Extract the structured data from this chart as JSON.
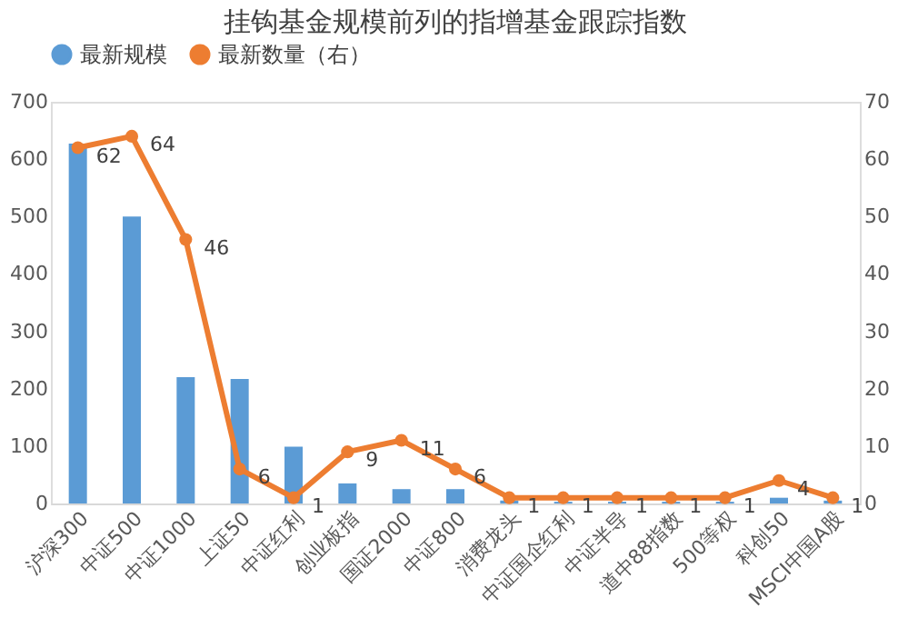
{
  "chart_data": {
    "type": "bar",
    "title": "挂钩基金规模前列的指增基金跟踪指数",
    "categories": [
      "沪深300",
      "中证500",
      "中证1000",
      "上证50",
      "中证红利",
      "创业板指",
      "国证2000",
      "中证800",
      "消费龙头",
      "中证国企红利",
      "中证半导",
      "道中88指数",
      "500等权",
      "科创50",
      "MSCI中国A股"
    ],
    "series": [
      {
        "name": "最新规模",
        "color": "#5b9bd5",
        "values": [
          627,
          500,
          220,
          217,
          99,
          35,
          25,
          25,
          5,
          3,
          3,
          3,
          3,
          10,
          5
        ]
      },
      {
        "name": "最新数量（右）",
        "type": "line",
        "axis": "y2",
        "color": "#ed7d31",
        "values": [
          62,
          64,
          46,
          6,
          1,
          9,
          11,
          6,
          1,
          1,
          1,
          1,
          1,
          4,
          1
        ],
        "value_labels": [
          "62",
          "64",
          "46",
          "6",
          "1",
          "9",
          "11",
          "6",
          "1",
          "1",
          "1",
          "1",
          "1",
          "4",
          "1"
        ]
      }
    ],
    "ylim": [
      0,
      700
    ],
    "yticks": [
      0,
      100,
      200,
      300,
      400,
      500,
      600,
      700
    ],
    "y2lim": [
      0,
      70
    ],
    "y2ticks": [
      0,
      10,
      20,
      30,
      40,
      50,
      60,
      70
    ],
    "legend": "top",
    "marker": "circle",
    "line_style": "solid",
    "grid": false
  }
}
